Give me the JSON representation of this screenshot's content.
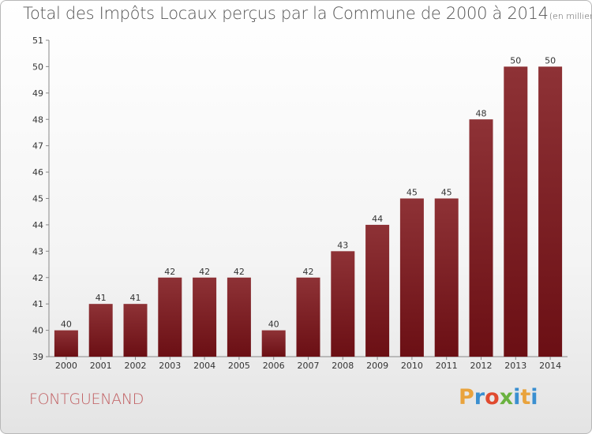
{
  "header": {
    "title": "Total des Impôts Locaux perçus par la Commune de 2000 à 2014",
    "subtitle": "(en milliers d'€)"
  },
  "commune": "FONTGUENAND",
  "logo": {
    "text": "Proxiti",
    "colors": [
      "#e9a33d",
      "#3a8fd0",
      "#e04a2f",
      "#6ab23f",
      "#3a8fd0",
      "#e9a33d",
      "#3a8fd0"
    ]
  },
  "chart_data": {
    "type": "bar",
    "title": "Total des Impôts Locaux perçus par la Commune de 2000 à 2014",
    "categories": [
      "2000",
      "2001",
      "2002",
      "2003",
      "2004",
      "2005",
      "2006",
      "2007",
      "2008",
      "2009",
      "2010",
      "2011",
      "2012",
      "2013",
      "2014"
    ],
    "values": [
      40,
      41,
      41,
      42,
      42,
      42,
      40,
      42,
      43,
      44,
      45,
      45,
      48,
      50,
      50
    ],
    "ylim": [
      39,
      51
    ],
    "yticks": [
      39,
      40,
      41,
      42,
      43,
      44,
      45,
      46,
      47,
      48,
      49,
      50,
      51
    ],
    "grid": false,
    "legend": "none",
    "bar_color": "#6b0f14",
    "bar_color_light": "#8e3236"
  }
}
